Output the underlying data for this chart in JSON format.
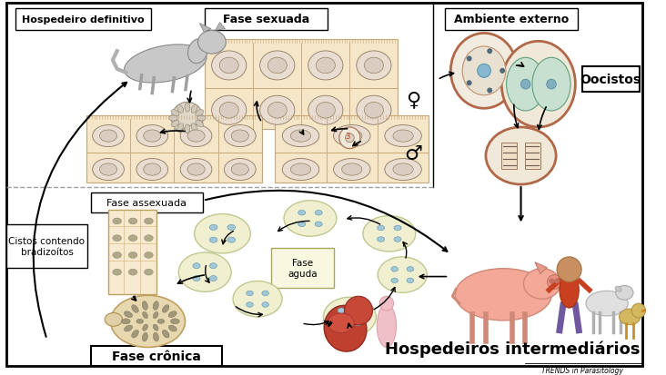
{
  "fig_width": 7.32,
  "fig_height": 4.14,
  "dpi": 100,
  "bg_color": "#ffffff",
  "labels": {
    "hospedeiro_definitivo": "Hospedeiro definitivo",
    "fase_sexuada": "Fase sexuada",
    "ambiente_externo": "Ambiente externo",
    "oocistos": "Oocistos",
    "fase_assexuada": "Fase assexuada",
    "cistos": "Cistos contendo\nbradizoítos",
    "fase_aguda": "Fase\naguda",
    "hospedeiros_intermediarios": "Hospedeiros intermediários",
    "fase_cronica": "Fase crônica",
    "trends": "TRENDS in Parasitology"
  },
  "male_symbol": "♂",
  "female_symbol": "♀",
  "colors": {
    "peach_bg": "#f5e6c8",
    "peach_border": "#c8a878",
    "cell_inner": "#e8ddc8",
    "cell_border": "#b09878",
    "oocyst_outer": "#c87858",
    "oocyst_bg": "#f0e8d8",
    "oocyst_inner_blue": "#b0d0e8",
    "oocyst_dot": "#507090",
    "sporocyst": "#a0c8b8",
    "sporozoite_outer": "#c87858",
    "sporozoite_bg": "#f0e8d0",
    "divider": "#a0a0a0",
    "arrow": "#000000",
    "tachyzoite_bg": "#e8f0d0",
    "tachyzoite_border": "#90a860",
    "tachyzoite_dot": "#507040",
    "cyst_bg": "#f0e8c8",
    "cyst_border": "#c0a060",
    "bradyzoite_dot": "#707060",
    "fetus_red": "#c84040",
    "fetus_bg": "#e07060",
    "silhouette_pink": "#f0c0c0",
    "pig_color": "#f0a898",
    "cat_color": "#c0c0c0",
    "person_skin": "#c8905a",
    "person_shirt": "#c84020",
    "sheep_color": "#d8d8d8",
    "bird_color": "#d8c878"
  }
}
